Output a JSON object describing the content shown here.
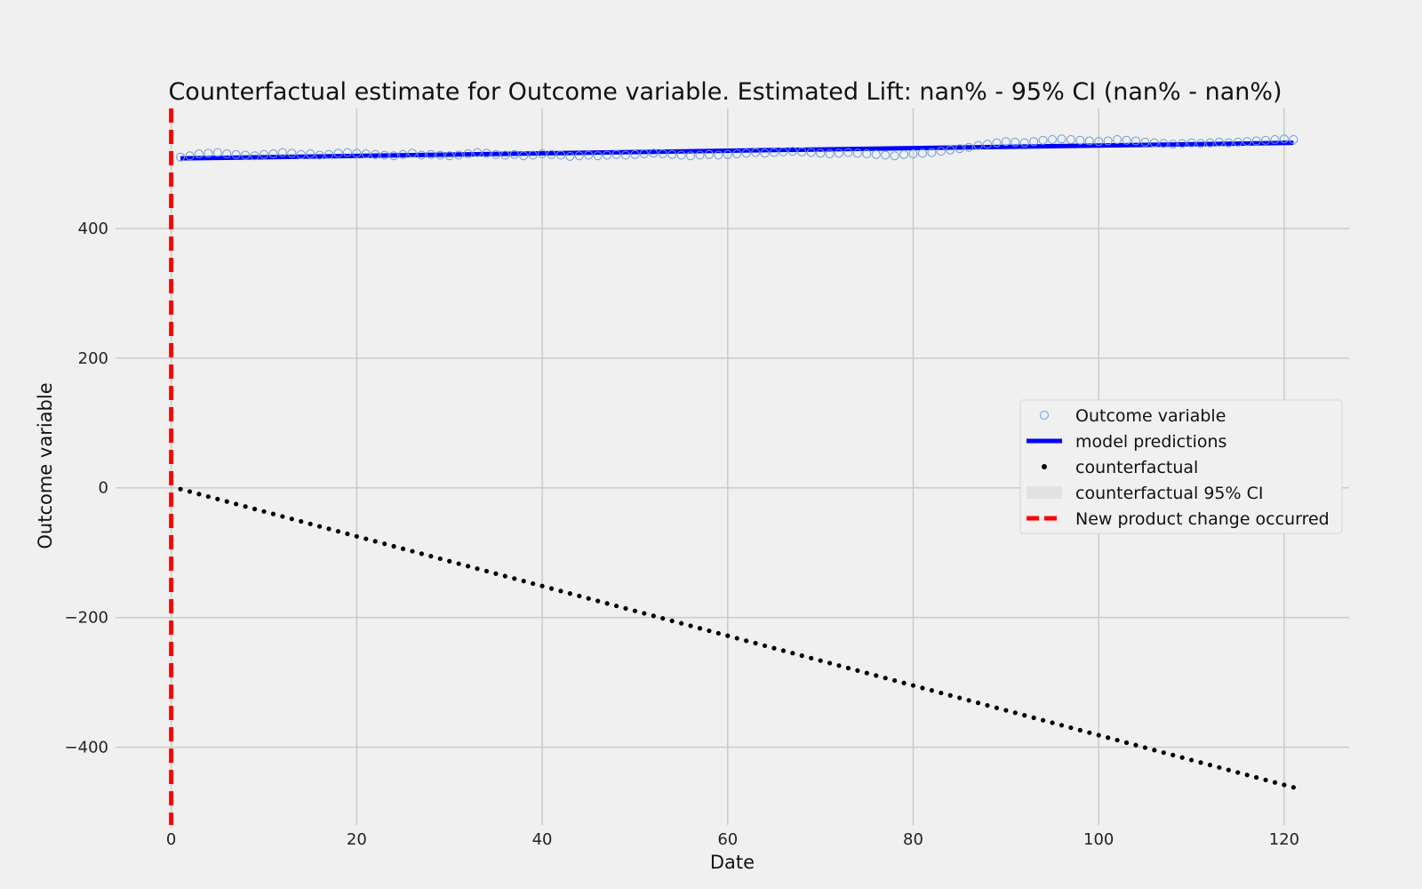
{
  "chart_data": {
    "type": "line",
    "title": "Counterfactual estimate for Outcome variable. Estimated Lift: nan% - 95% CI (nan% - nan%)",
    "xlabel": "Date",
    "ylabel": "Outcome variable",
    "xlim": [
      -6,
      127
    ],
    "ylim": [
      -520,
      585
    ],
    "xticks": [
      0,
      20,
      40,
      60,
      80,
      100,
      120
    ],
    "yticks": [
      -400,
      -200,
      0,
      200,
      400
    ],
    "xtick_labels": [
      "0",
      "20",
      "40",
      "60",
      "80",
      "100",
      "120"
    ],
    "ytick_labels": [
      "−400",
      "−200",
      "0",
      "200",
      "400"
    ],
    "grid": true,
    "legend_position": "center-right",
    "intervention_x": 0,
    "series": [
      {
        "name": "Outcome variable",
        "style": "hollow-markers",
        "color": "#6a9bd8",
        "x_start": 1,
        "x_step": 1,
        "values": [
          510,
          512,
          515,
          516,
          517,
          515,
          514,
          513,
          512,
          514,
          515,
          517,
          516,
          514,
          515,
          513,
          514,
          516,
          517,
          516,
          515,
          514,
          513,
          512,
          514,
          516,
          513,
          514,
          513,
          512,
          513,
          515,
          517,
          516,
          514,
          513,
          514,
          512,
          513,
          515,
          514,
          513,
          511,
          512,
          513,
          512,
          513,
          514,
          513,
          514,
          515,
          516,
          515,
          514,
          513,
          512,
          513,
          514,
          513,
          514,
          515,
          516,
          517,
          516,
          517,
          518,
          519,
          518,
          517,
          516,
          515,
          516,
          517,
          516,
          515,
          514,
          513,
          512,
          514,
          515,
          516,
          517,
          519,
          521,
          523,
          525,
          528,
          530,
          532,
          534,
          533,
          532,
          534,
          536,
          537,
          538,
          537,
          536,
          535,
          534,
          535,
          537,
          536,
          535,
          533,
          532,
          531,
          530,
          531,
          532,
          531,
          532,
          533,
          532,
          533,
          534,
          535,
          536,
          537,
          538,
          537
        ]
      },
      {
        "name": "model predictions",
        "style": "line",
        "color": "#0000ff",
        "x": [
          1,
          121
        ],
        "y": [
          508,
          532
        ]
      },
      {
        "name": "counterfactual",
        "style": "dots",
        "color": "#000000",
        "x": [
          1,
          121
        ],
        "y": [
          -2,
          -462
        ],
        "points": 121
      },
      {
        "name": "counterfactual 95% CI",
        "style": "band",
        "color": "#e2e2e2"
      },
      {
        "name": "New product change occurred",
        "style": "dashed-vline",
        "color": "#ff0000"
      }
    ]
  }
}
